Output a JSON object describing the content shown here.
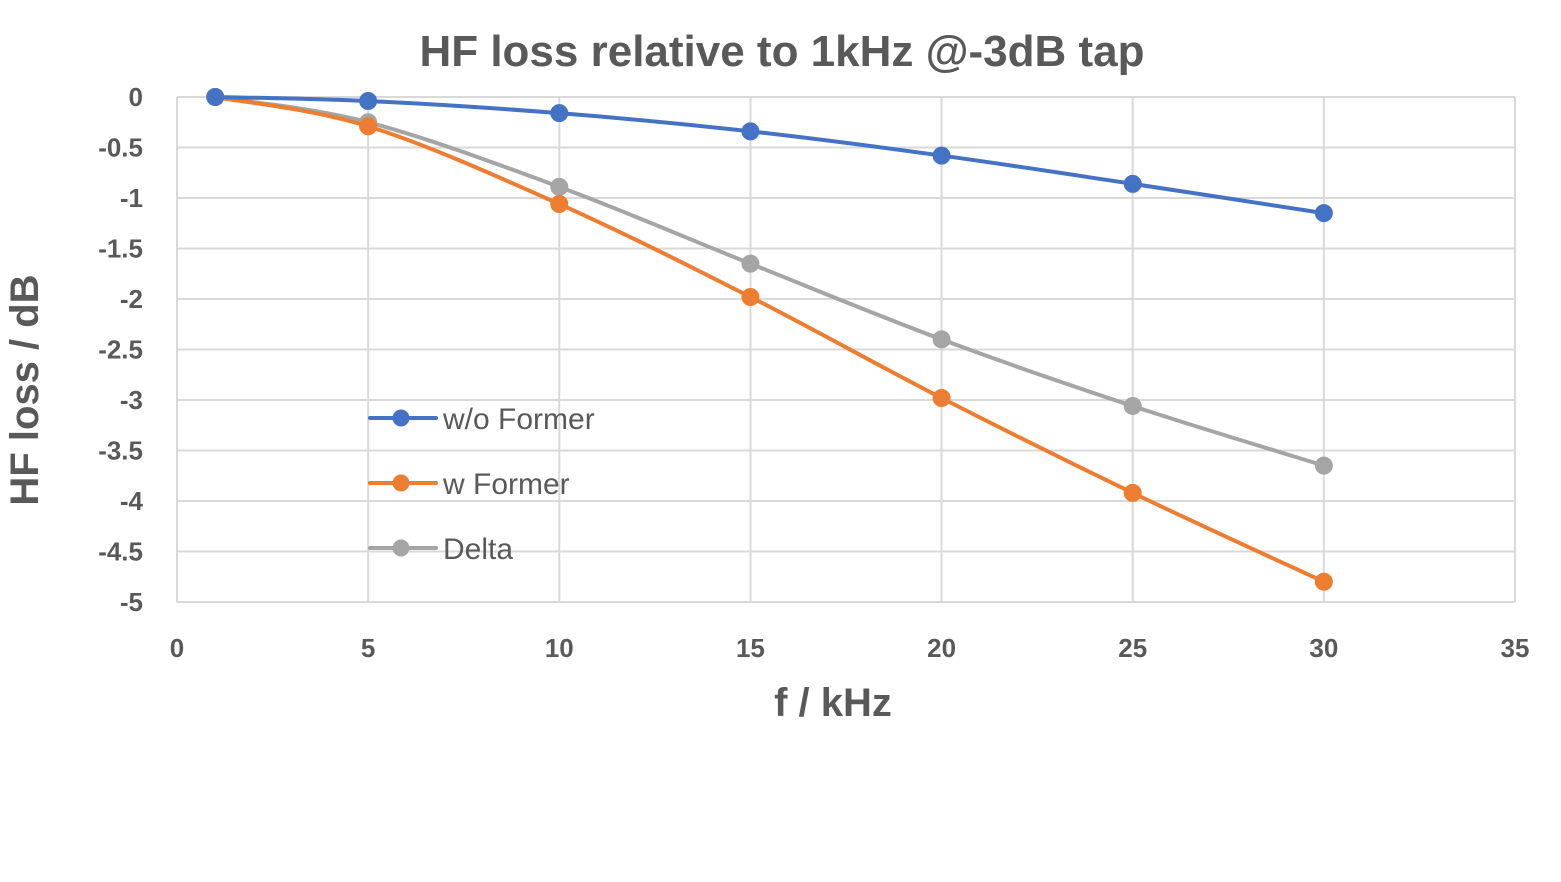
{
  "chart_data": {
    "type": "line",
    "title": "HF loss relative to 1kHz @-3dB tap",
    "xlabel": "f / kHz",
    "ylabel": "HF loss  / dB",
    "xlim": [
      0,
      35
    ],
    "ylim": [
      -5,
      0
    ],
    "x_ticks": [
      "0",
      "5",
      "10",
      "15",
      "20",
      "25",
      "30",
      "35"
    ],
    "y_ticks": [
      "0",
      "-0.5",
      "-1",
      "-1.5",
      "-2",
      "-2.5",
      "-3",
      "-3.5",
      "-4",
      "-4.5",
      "-5"
    ],
    "grid": true,
    "legend_position": "inside-left",
    "x": [
      1,
      5,
      10,
      15,
      20,
      25,
      30
    ],
    "series": [
      {
        "name": "w/o Former",
        "color": "#4472c4",
        "values": [
          0,
          -0.04,
          -0.16,
          -0.34,
          -0.58,
          -0.86,
          -1.15
        ]
      },
      {
        "name": "w Former",
        "color": "#ed7d31",
        "values": [
          0,
          -0.29,
          -1.06,
          -1.98,
          -2.98,
          -3.92,
          -4.8
        ]
      },
      {
        "name": "Delta",
        "color": "#a5a5a5",
        "values": [
          0,
          -0.25,
          -0.89,
          -1.65,
          -2.4,
          -3.06,
          -3.65
        ]
      }
    ]
  }
}
